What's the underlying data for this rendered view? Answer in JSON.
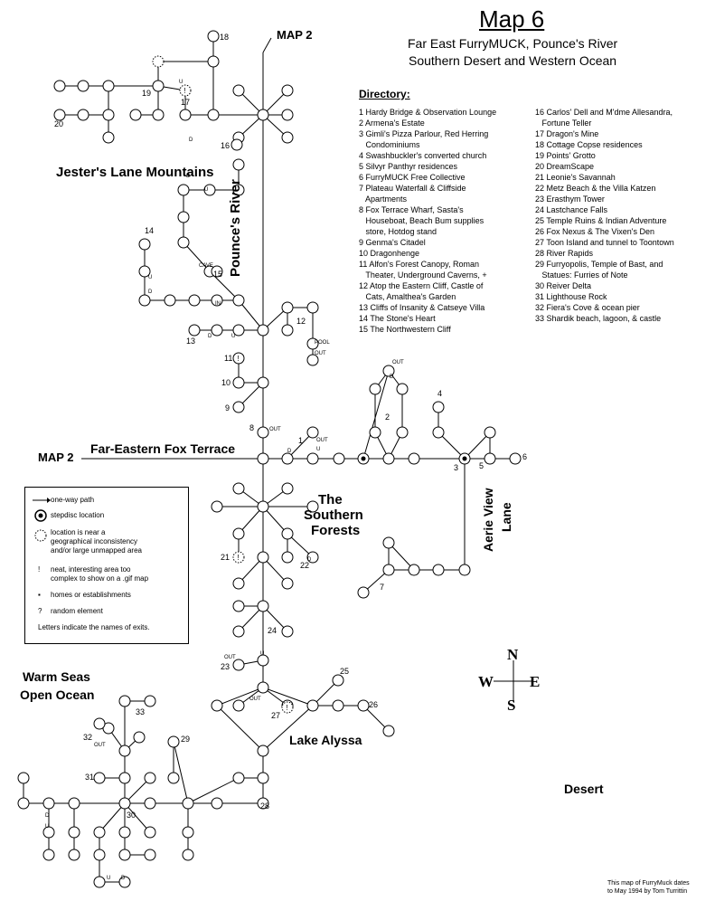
{
  "header": {
    "title": "Map 6",
    "subtitle_lines": [
      "Far East FurryMUCK, Pounce's River",
      "Southern Desert and Western Ocean"
    ]
  },
  "directory": {
    "heading": "Directory:",
    "col1": [
      "1 Hardy Bridge & Observation Lounge",
      "2 Armena's Estate",
      "3 Gimli's Pizza Parlour, Red Herring",
      "   Condominiums",
      "4 Swashbuckler's converted church",
      "5 Silvyr Panthyr residences",
      "6 FurryMUCK Free Collective",
      "7 Plateau Waterfall & Cliffside",
      "   Apartments",
      "8 Fox Terrace Wharf, Sasta's",
      "   Houseboat, Beach Bum supplies",
      "   store, Hotdog stand",
      "9 Genma's Citadel",
      "10 Dragonhenge",
      "11 Alfon's Forest Canopy, Roman",
      "   Theater, Underground Caverns, +",
      "12 Atop the Eastern Cliff, Castle of",
      "   Cats, Amalthea's Garden",
      "13 Cliffs of Insanity & Catseye Villa",
      "14 The Stone's Heart",
      "15 The Northwestern Cliff"
    ],
    "col2": [
      "16 Carlos' Dell and M'dme Allesandra,",
      "   Fortune Teller",
      "17 Dragon's Mine",
      "18 Cottage Copse residences",
      "19 Points' Grotto",
      "20 DreamScape",
      "21 Leonie's Savannah",
      "22 Metz Beach & the Villa Katzen",
      "23 Erasthym Tower",
      "24 Lastchance Falls",
      "25 Temple Ruins & Indian Adventure",
      "26 Fox Nexus & The Vixen's Den",
      "27 Toon Island and tunnel to Toontown",
      "28 River Rapids",
      "29 Furryopolis, Temple of Bast, and",
      "   Statues: Furries of Note",
      "30 Reiver Delta",
      "31 Lighthouse Rock",
      "32 Fiera's Cove & ocean pier",
      "33 Shardik beach, lagoon, & castle"
    ]
  },
  "regions": {
    "jester": "Jester's Lane Mountains",
    "river": "Pounce's River",
    "fox_terrace": "Far-Eastern Fox Terrace",
    "forests": [
      "The",
      "Southern",
      "Forests"
    ],
    "aerie": [
      "Aerie View",
      "Lane"
    ],
    "warm_seas": [
      "Warm Seas",
      "Open Ocean"
    ],
    "lake": "Lake Alyssa",
    "desert": "Desert"
  },
  "map_links": {
    "north": "MAP 2",
    "west": "MAP 2"
  },
  "legend": {
    "one_way": "one-way path",
    "stepdisc": "stepdisc location",
    "inconsistency": [
      "location is near a",
      "geographical inconsistency",
      "and/or large unmapped area"
    ],
    "neat": [
      "neat, interesting area too",
      "complex to show on a .gif map"
    ],
    "homes": "homes or establishments",
    "random": "random element",
    "letters": "Letters indicate the names of exits.",
    "symbol_neat": "!",
    "symbol_homes": "▪",
    "symbol_random": "?"
  },
  "compass": {
    "n": "N",
    "s": "S",
    "e": "E",
    "w": "W"
  },
  "credit": [
    "This map of FurryMuck dates",
    "to May 1994 by Tom Turrittin"
  ],
  "map_labels": [
    {
      "id": "18",
      "text": "18"
    },
    {
      "id": "17",
      "text": "17"
    },
    {
      "id": "19",
      "text": "19"
    },
    {
      "id": "20",
      "text": "20"
    },
    {
      "id": "16",
      "text": "16"
    },
    {
      "id": "14",
      "text": "14"
    },
    {
      "id": "15",
      "text": "15"
    },
    {
      "id": "13",
      "text": "13"
    },
    {
      "id": "12",
      "text": "12"
    },
    {
      "id": "11",
      "text": "11"
    },
    {
      "id": "10",
      "text": "10"
    },
    {
      "id": "9",
      "text": "9"
    },
    {
      "id": "8",
      "text": "8"
    },
    {
      "id": "1",
      "text": "1"
    },
    {
      "id": "2",
      "text": "2"
    },
    {
      "id": "3",
      "text": "3"
    },
    {
      "id": "4",
      "text": "4"
    },
    {
      "id": "5",
      "text": "5"
    },
    {
      "id": "6",
      "text": "6"
    },
    {
      "id": "7",
      "text": "7"
    },
    {
      "id": "21",
      "text": "21"
    },
    {
      "id": "22",
      "text": "22"
    },
    {
      "id": "23",
      "text": "23"
    },
    {
      "id": "24",
      "text": "24"
    },
    {
      "id": "25",
      "text": "25"
    },
    {
      "id": "26",
      "text": "26"
    },
    {
      "id": "27",
      "text": "27"
    },
    {
      "id": "28",
      "text": "28"
    },
    {
      "id": "29",
      "text": "29"
    },
    {
      "id": "30",
      "text": "30"
    },
    {
      "id": "31",
      "text": "31"
    },
    {
      "id": "32",
      "text": "32"
    },
    {
      "id": "33",
      "text": "33"
    }
  ],
  "exit_labels": [
    {
      "id": "e1",
      "text": "D"
    },
    {
      "id": "e2",
      "text": "U"
    },
    {
      "id": "e3",
      "text": "D"
    },
    {
      "id": "e4",
      "text": "U"
    },
    {
      "id": "e5",
      "text": "U"
    },
    {
      "id": "e6",
      "text": "D"
    },
    {
      "id": "e7",
      "text": "CAVE"
    },
    {
      "id": "e8",
      "text": "IN"
    },
    {
      "id": "e9",
      "text": "D"
    },
    {
      "id": "e10",
      "text": "U"
    },
    {
      "id": "e11",
      "text": "POOL"
    },
    {
      "id": "e12",
      "text": "OUT"
    },
    {
      "id": "e13",
      "text": "OUT"
    },
    {
      "id": "e14",
      "text": "D"
    },
    {
      "id": "e15",
      "text": "OUT"
    },
    {
      "id": "e16",
      "text": "U"
    },
    {
      "id": "e17",
      "text": "D"
    },
    {
      "id": "e18",
      "text": "OUT"
    },
    {
      "id": "e19",
      "text": "D"
    },
    {
      "id": "e20",
      "text": "OUT"
    },
    {
      "id": "e21",
      "text": "U"
    },
    {
      "id": "e22",
      "text": "OUT"
    },
    {
      "id": "e23",
      "text": "OUT"
    },
    {
      "id": "e24",
      "text": "D"
    },
    {
      "id": "e25",
      "text": "U"
    },
    {
      "id": "e26",
      "text": "U"
    },
    {
      "id": "e27",
      "text": "D"
    }
  ]
}
